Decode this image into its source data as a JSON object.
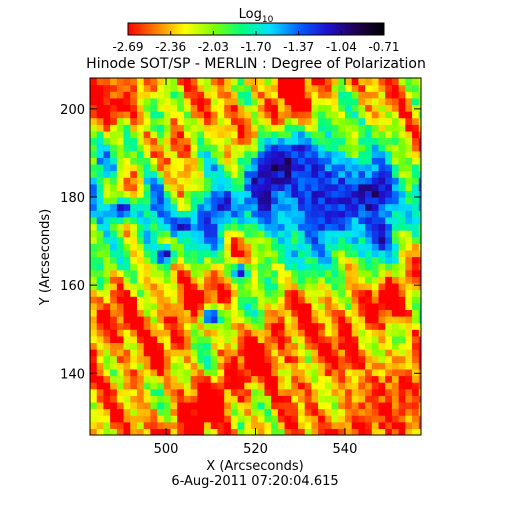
{
  "chart_data": {
    "type": "heatmap",
    "title": "Hinode SOT/SP - MERLIN : Degree of Polarization",
    "subtitle": "6-Aug-2011 07:20:04.615",
    "xlabel": "X (Arcseconds)",
    "ylabel": "Y (Arcseconds)",
    "xlim": [
      483,
      557
    ],
    "ylim": [
      126,
      207
    ],
    "x_ticks": [
      500,
      520,
      540
    ],
    "y_ticks": [
      140,
      160,
      180,
      200
    ],
    "colorbar": {
      "label_base": "Log",
      "label_sub": "10",
      "ticks": [
        "-2.69",
        "-2.36",
        "-2.03",
        "-1.70",
        "-1.37",
        "-1.04",
        "-0.71"
      ],
      "range": [
        -2.69,
        -0.71
      ],
      "colormap": [
        "#ff0000",
        "#ff8000",
        "#ffff00",
        "#80ff00",
        "#00ff80",
        "#00e0ff",
        "#0060ff",
        "#2010d0",
        "#200050",
        "#000000"
      ]
    },
    "regions": [
      {
        "name": "sunspot-umbra-left",
        "x": 526,
        "y": 187,
        "rx": 9,
        "ry": 7,
        "value": -0.85
      },
      {
        "name": "sunspot-umbra-right",
        "x": 546,
        "y": 181,
        "rx": 7,
        "ry": 6,
        "value": -0.85
      },
      {
        "name": "penumbra",
        "x": 535,
        "y": 180,
        "rx": 22,
        "ry": 17,
        "value": -1.2
      },
      {
        "name": "pore-1",
        "x": 490,
        "y": 177,
        "rx": 5,
        "ry": 4,
        "value": -1.15
      },
      {
        "name": "pore-2",
        "x": 504,
        "y": 174,
        "rx": 4,
        "ry": 4,
        "value": -1.15
      },
      {
        "name": "pore-3",
        "x": 512,
        "y": 178,
        "rx": 4,
        "ry": 4,
        "value": -1.1
      },
      {
        "name": "pore-4",
        "x": 500,
        "y": 167,
        "rx": 3,
        "ry": 3,
        "value": -1.15
      },
      {
        "name": "pore-5",
        "x": 510,
        "y": 153,
        "rx": 3,
        "ry": 3,
        "value": -1.2
      },
      {
        "name": "pore-6",
        "x": 517,
        "y": 163,
        "rx": 3,
        "ry": 3,
        "value": -1.25
      },
      {
        "name": "quiet-sun-red-southeast",
        "x": 548,
        "y": 136,
        "rx": 14,
        "ry": 12,
        "value": -2.55
      },
      {
        "name": "quiet-sun-red-northwest",
        "x": 490,
        "y": 205,
        "rx": 7,
        "ry": 5,
        "value": -2.5
      }
    ]
  }
}
